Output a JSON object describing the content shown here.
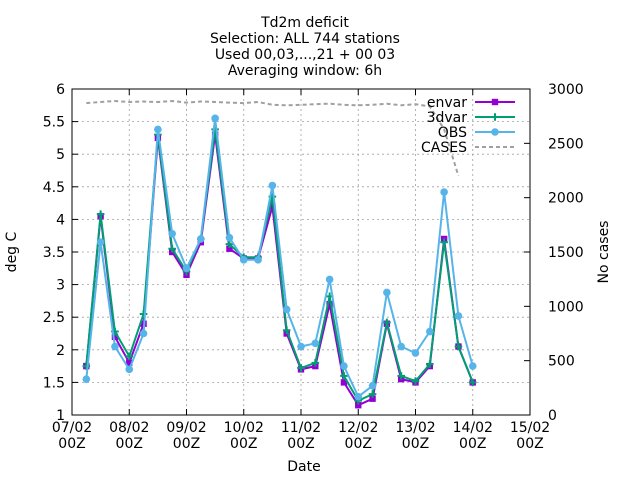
{
  "chart_data": {
    "type": "line",
    "title_lines": [
      "Td2m deficit",
      "Selection: ALL    744 stations",
      "Used 00,03,...,21 + 00 03",
      "Averaging window:  6h"
    ],
    "xlabel": "Date",
    "ylabel": "deg C",
    "y2label": "No cases",
    "xlim": [
      0,
      8
    ],
    "ylim": [
      1,
      6
    ],
    "y2lim": [
      0,
      3000
    ],
    "grid": true,
    "legend_position": "top-right",
    "xticks": [
      {
        "x": 0,
        "l1": "07/02",
        "l2": "00Z"
      },
      {
        "x": 1,
        "l1": "08/02",
        "l2": "00Z"
      },
      {
        "x": 2,
        "l1": "09/02",
        "l2": "00Z"
      },
      {
        "x": 3,
        "l1": "10/02",
        "l2": "00Z"
      },
      {
        "x": 4,
        "l1": "11/02",
        "l2": "00Z"
      },
      {
        "x": 5,
        "l1": "12/02",
        "l2": "00Z"
      },
      {
        "x": 6,
        "l1": "13/02",
        "l2": "00Z"
      },
      {
        "x": 7,
        "l1": "14/02",
        "l2": "00Z"
      },
      {
        "x": 8,
        "l1": "15/02",
        "l2": "00Z"
      }
    ],
    "yticks": [
      {
        "v": 1,
        "l": "1"
      },
      {
        "v": 1.5,
        "l": "1.5"
      },
      {
        "v": 2,
        "l": "2"
      },
      {
        "v": 2.5,
        "l": "2.5"
      },
      {
        "v": 3,
        "l": "3"
      },
      {
        "v": 3.5,
        "l": "3.5"
      },
      {
        "v": 4,
        "l": "4"
      },
      {
        "v": 4.5,
        "l": "4.5"
      },
      {
        "v": 5,
        "l": "5"
      },
      {
        "v": 5.5,
        "l": "5.5"
      },
      {
        "v": 6,
        "l": "6"
      }
    ],
    "y2ticks": [
      {
        "v": 0,
        "l": "0"
      },
      {
        "v": 500,
        "l": "500"
      },
      {
        "v": 1000,
        "l": "1000"
      },
      {
        "v": 1500,
        "l": "1500"
      },
      {
        "v": 2000,
        "l": "2000"
      },
      {
        "v": 2500,
        "l": "2500"
      },
      {
        "v": 3000,
        "l": "3000"
      }
    ],
    "x": [
      0.25,
      0.5,
      0.75,
      1.0,
      1.25,
      1.5,
      1.75,
      2.0,
      2.25,
      2.5,
      2.75,
      3.0,
      3.25,
      3.5,
      3.75,
      4.0,
      4.25,
      4.5,
      4.75,
      5.0,
      5.25,
      5.5,
      5.75,
      6.0,
      6.25,
      6.5,
      6.75,
      7.0,
      7.25
    ],
    "series": [
      {
        "name": "envar",
        "color": "#9400d3",
        "axis": "y1",
        "values": [
          1.75,
          4.05,
          2.2,
          1.8,
          2.4,
          5.25,
          3.5,
          3.15,
          3.65,
          5.3,
          3.55,
          3.4,
          3.4,
          4.2,
          2.25,
          1.7,
          1.75,
          2.7,
          1.5,
          1.15,
          1.25,
          2.4,
          1.55,
          1.5,
          1.75,
          3.7,
          2.05,
          1.5,
          null
        ]
      },
      {
        "name": "3dvar",
        "color": "#009e73",
        "axis": "y1",
        "values": [
          1.75,
          4.08,
          2.28,
          1.9,
          2.55,
          5.3,
          3.55,
          3.2,
          3.7,
          5.38,
          3.62,
          3.42,
          3.42,
          4.35,
          2.3,
          1.72,
          1.8,
          2.82,
          1.6,
          1.22,
          1.32,
          2.42,
          1.6,
          1.52,
          1.78,
          3.65,
          2.05,
          1.5,
          null
        ]
      },
      {
        "name": "OBS",
        "color": "#56b4e9",
        "axis": "y1",
        "values": [
          1.55,
          3.65,
          2.05,
          1.7,
          2.25,
          5.38,
          3.78,
          3.25,
          3.7,
          5.55,
          3.72,
          3.38,
          3.38,
          4.52,
          2.62,
          2.05,
          2.1,
          3.08,
          1.75,
          1.28,
          1.45,
          2.88,
          2.05,
          1.95,
          2.28,
          4.42,
          2.52,
          1.75,
          null
        ]
      },
      {
        "name": "CASES",
        "color": "#a0a0a0",
        "axis": "y2",
        "values": [
          2870,
          2880,
          2890,
          2880,
          2885,
          2880,
          2890,
          2875,
          2885,
          2880,
          2875,
          2870,
          2880,
          2855,
          2850,
          2855,
          2860,
          2865,
          2855,
          2850,
          2855,
          2865,
          2850,
          2860,
          2840,
          2630,
          2200,
          null,
          null
        ]
      }
    ]
  }
}
